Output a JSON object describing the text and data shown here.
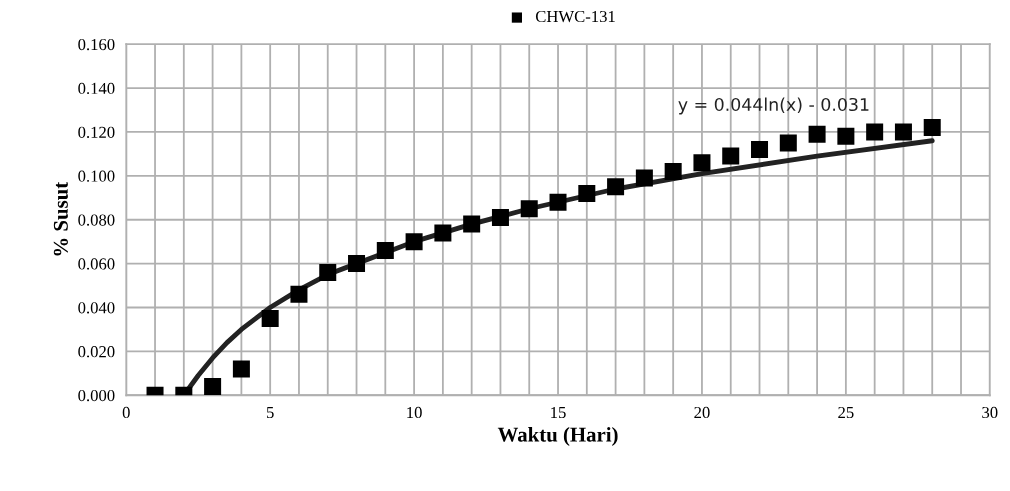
{
  "chart_data": {
    "type": "scatter",
    "xlabel": "Waktu (Hari)",
    "ylabel": "% Susut",
    "legend": "top",
    "grid": true,
    "xlim": [
      0,
      30
    ],
    "xticks": [
      0,
      {
        "value": 1,
        "label": null
      },
      {
        "value": 2,
        "label": null
      },
      {
        "value": 3,
        "label": null
      },
      {
        "value": 4,
        "label": null
      },
      5,
      {
        "value": 6,
        "label": null
      },
      {
        "value": 7,
        "label": null
      },
      {
        "value": 8,
        "label": null
      },
      {
        "value": 9,
        "label": null
      },
      10,
      {
        "value": 11,
        "label": null
      },
      {
        "value": 12,
        "label": null
      },
      {
        "value": 13,
        "label": null
      },
      {
        "value": 14,
        "label": null
      },
      15,
      {
        "value": 16,
        "label": null
      },
      {
        "value": 17,
        "label": null
      },
      {
        "value": 18,
        "label": null
      },
      {
        "value": 19,
        "label": null
      },
      20,
      {
        "value": 21,
        "label": null
      },
      {
        "value": 22,
        "label": null
      },
      {
        "value": 23,
        "label": null
      },
      {
        "value": 24,
        "label": null
      },
      25,
      {
        "value": 26,
        "label": null
      },
      {
        "value": 27,
        "label": null
      },
      {
        "value": 28,
        "label": null
      },
      {
        "value": 29,
        "label": null
      },
      30
    ],
    "ylim": [
      0,
      0.16
    ],
    "yticks": [
      {
        "value": 0,
        "label": "0.000"
      },
      {
        "value": 0.02,
        "label": "0.020"
      },
      {
        "value": 0.04,
        "label": "0.040"
      },
      {
        "value": 0.06,
        "label": "0.060"
      },
      {
        "value": 0.08,
        "label": "0.080"
      },
      {
        "value": 0.1,
        "label": "0.100"
      },
      {
        "value": 0.12,
        "label": "0.120"
      },
      {
        "value": 0.14,
        "label": "0.140"
      },
      {
        "value": 0.16,
        "label": "0.160"
      }
    ],
    "annotations": [
      "y = 0.044ln(x) - 0.031"
    ],
    "series": [
      {
        "name": "CHWC-131",
        "marker": "square",
        "color": "#000000",
        "x": [
          1,
          2,
          3,
          4,
          5,
          6,
          7,
          8,
          9,
          10,
          11,
          12,
          13,
          14,
          15,
          16,
          17,
          18,
          19,
          20,
          21,
          22,
          23,
          24,
          25,
          26,
          27,
          28
        ],
        "values": [
          0,
          0,
          0.004,
          0.012,
          0.035,
          0.046,
          0.056,
          0.06,
          0.066,
          0.07,
          0.074,
          0.078,
          0.081,
          0.085,
          0.088,
          0.092,
          0.095,
          0.099,
          0.102,
          0.106,
          0.109,
          0.112,
          0.115,
          0.119,
          0.118,
          0.12,
          0.12,
          0.122
        ]
      },
      {
        "type": "line",
        "color": "#222222",
        "x": [
          2,
          2.5,
          3,
          3.5,
          4,
          5,
          6,
          7,
          8,
          10,
          12,
          14,
          17,
          20,
          24,
          28
        ],
        "values": [
          0.0,
          0.009,
          0.017,
          0.024,
          0.03,
          0.04,
          0.048,
          0.055,
          0.06,
          0.07,
          0.078,
          0.085,
          0.094,
          0.101,
          0.109,
          0.116
        ]
      }
    ]
  }
}
